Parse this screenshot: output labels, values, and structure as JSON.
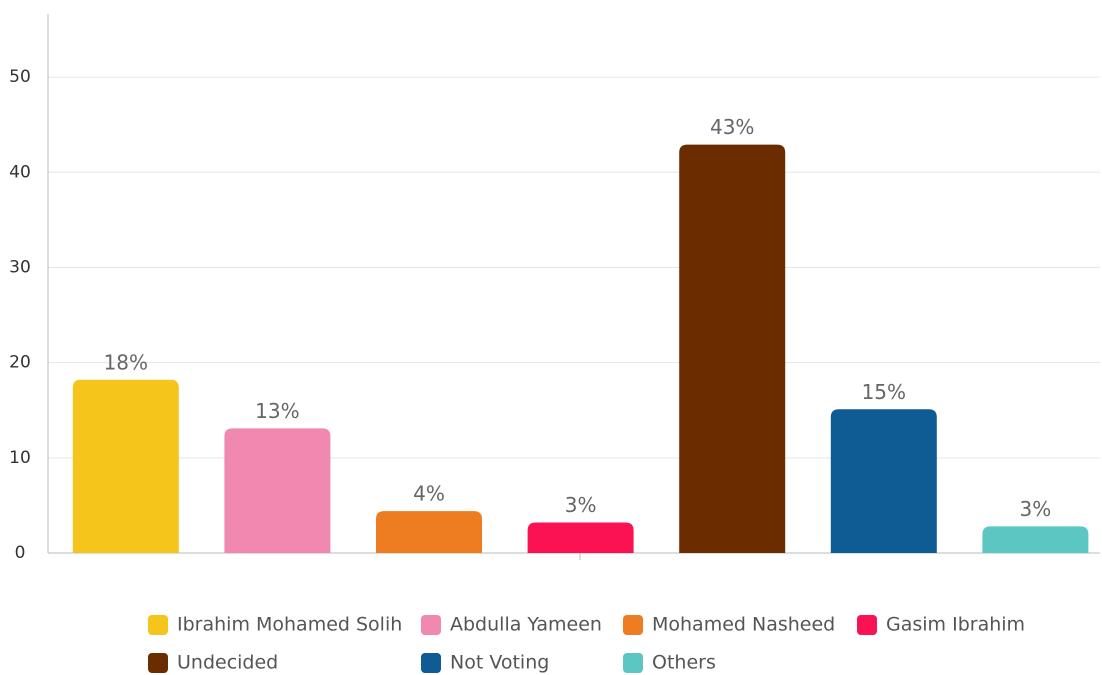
{
  "chart_data": {
    "type": "bar",
    "series": [
      {
        "name": "Ibrahim Mohamed Solih",
        "color": "#f6c51b",
        "values": [
          18.2
        ],
        "value_labels": [
          "18%"
        ]
      },
      {
        "name": "Abdulla Yameen",
        "color": "#f088b0",
        "values": [
          13.1
        ],
        "value_labels": [
          "13%"
        ]
      },
      {
        "name": "Mohamed Nasheed",
        "color": "#ee7d22",
        "values": [
          4.4
        ],
        "value_labels": [
          "4%"
        ]
      },
      {
        "name": "Gasim Ibrahim",
        "color": "#fb1253",
        "values": [
          3.2
        ],
        "value_labels": [
          "3%"
        ]
      },
      {
        "name": "Undecided",
        "color": "#6b2d00",
        "values": [
          42.9
        ],
        "value_labels": [
          "43%"
        ]
      },
      {
        "name": "Not Voting",
        "color": "#0f5b94",
        "values": [
          15.1
        ],
        "value_labels": [
          "15%"
        ]
      },
      {
        "name": "Others",
        "color": "#5cc6c2",
        "values": [
          2.8
        ],
        "value_labels": [
          "3%"
        ]
      }
    ],
    "ylim": [
      0,
      56
    ],
    "yticks": [
      0,
      10,
      20,
      30,
      40,
      50
    ],
    "grid": true,
    "legend": "bottom"
  }
}
